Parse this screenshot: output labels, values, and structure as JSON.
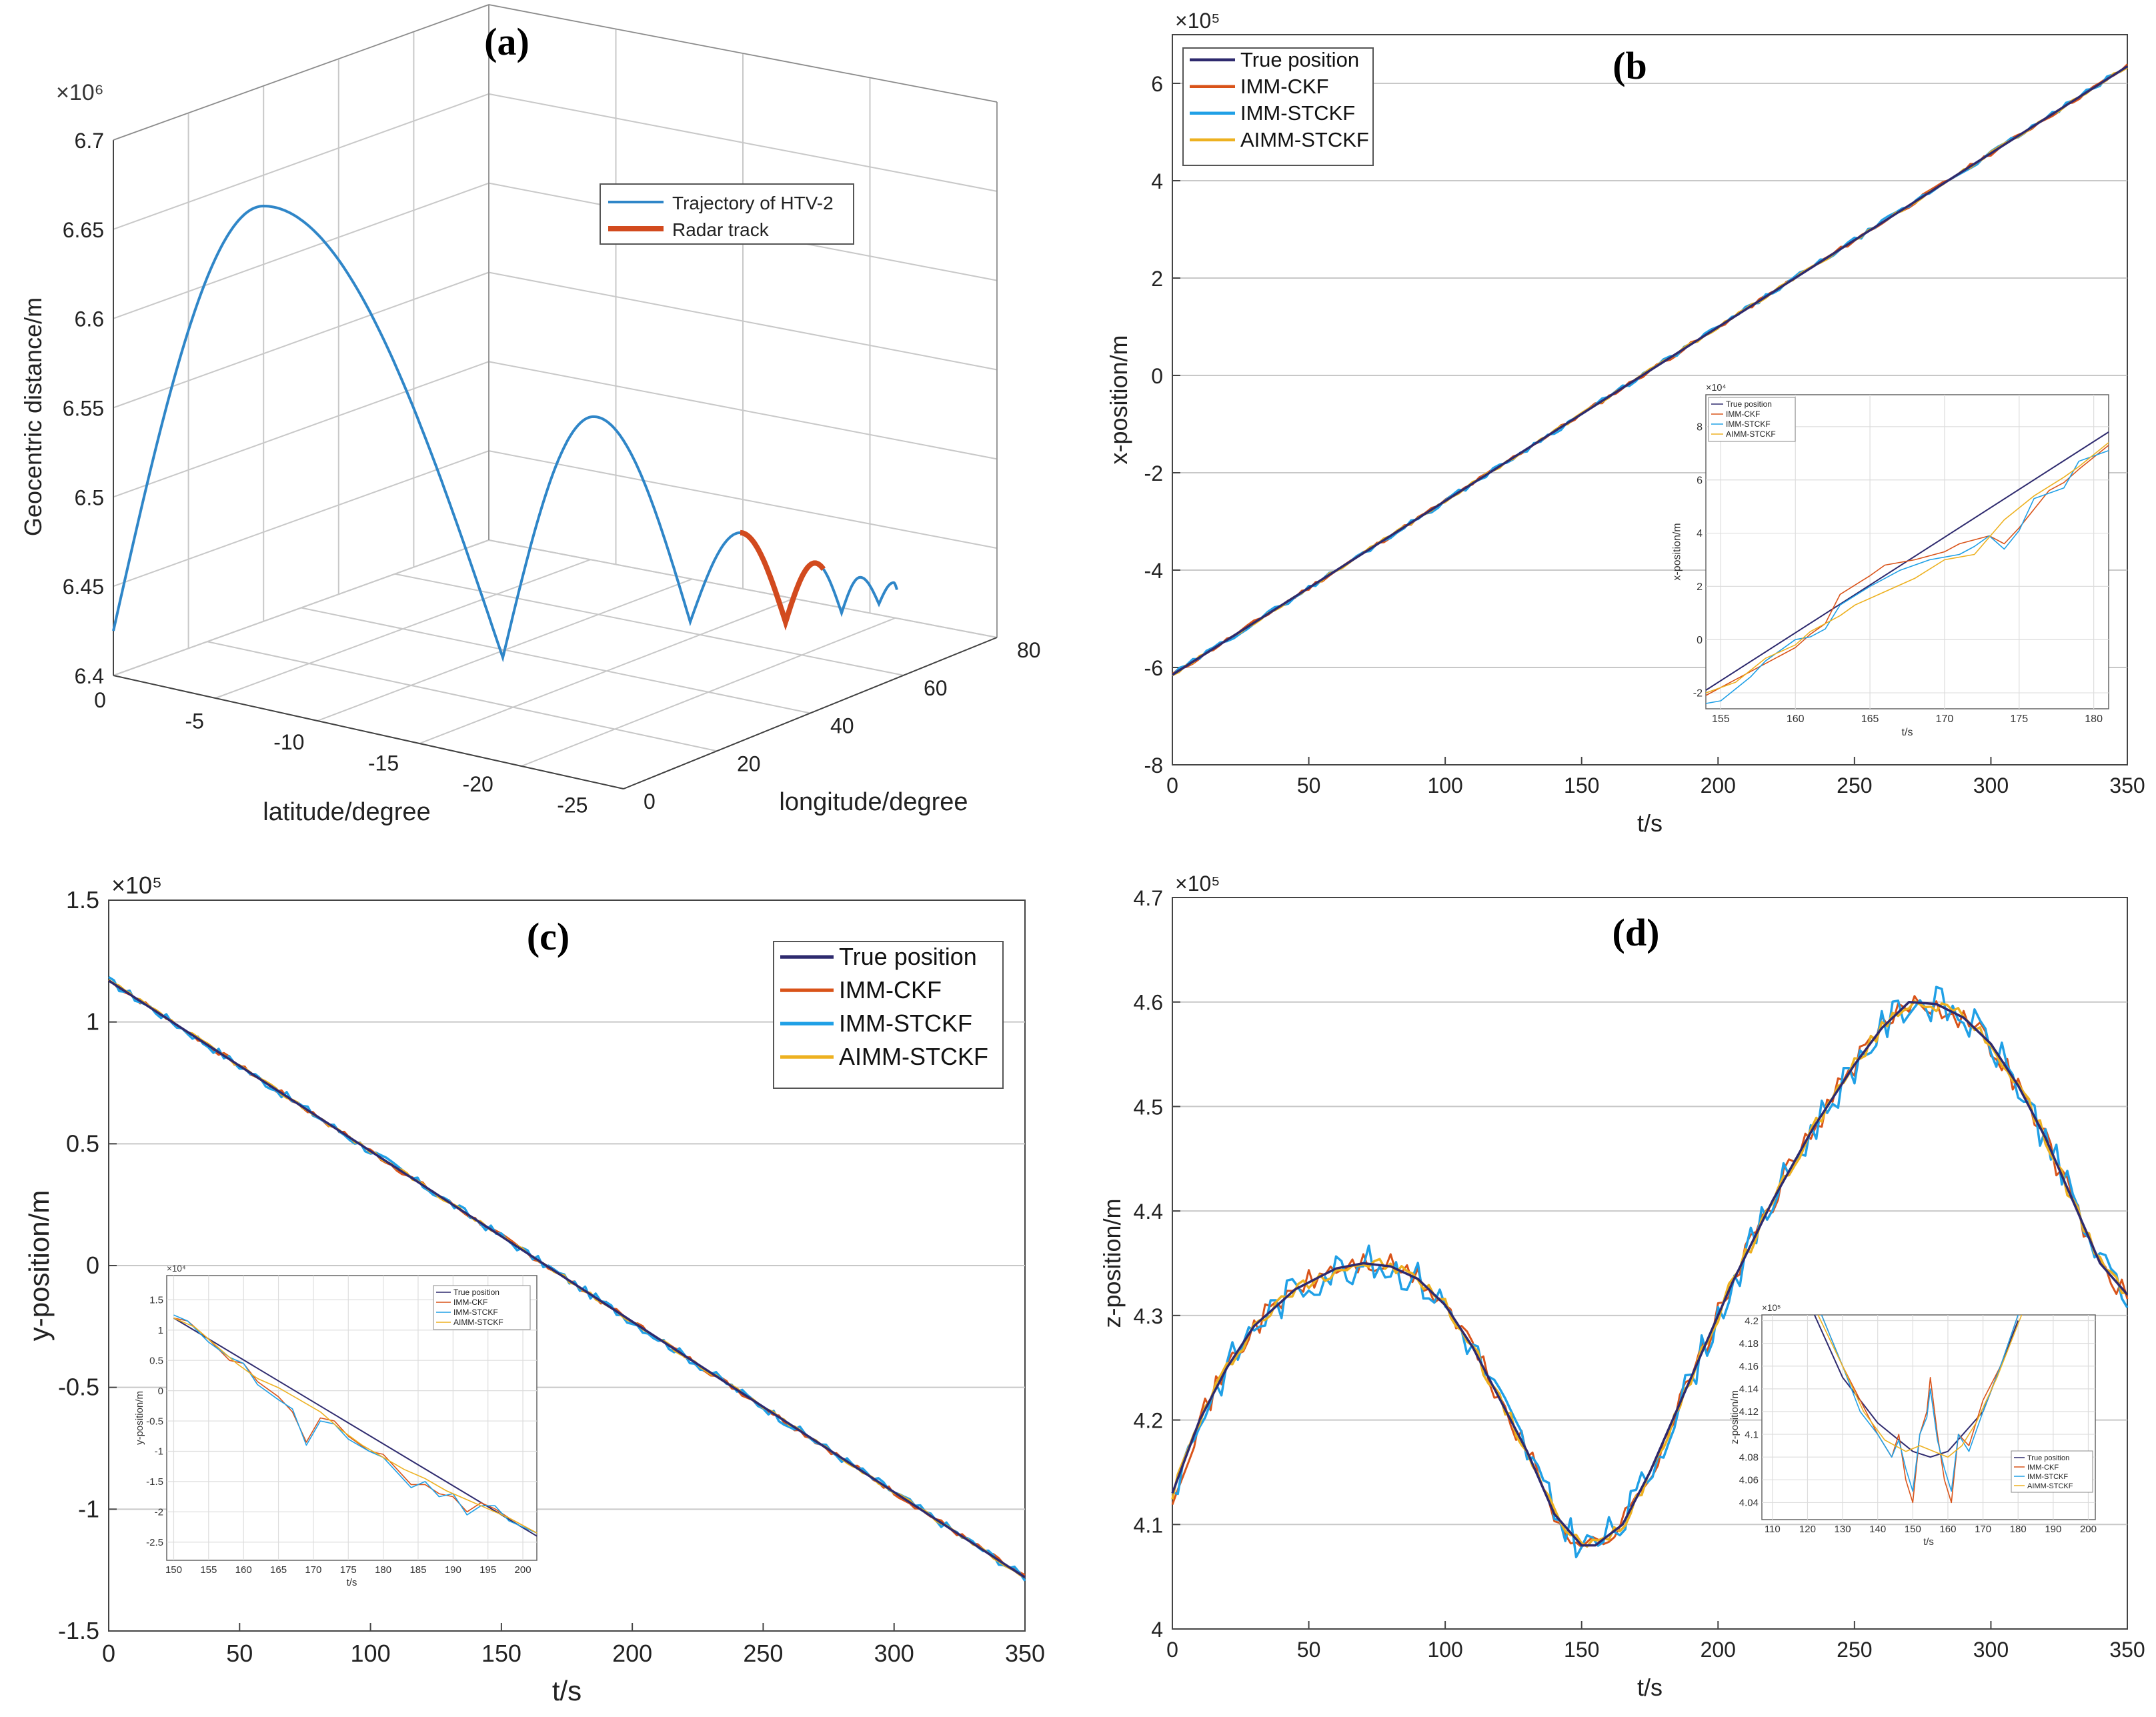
{
  "colors": {
    "true": "#2e2a6e",
    "ckf": "#d95319",
    "stckf": "#20a0e6",
    "aimm": "#edb120",
    "htv": "#2f86c8",
    "radar": "#d24a1e",
    "grid": "#c8c8c8",
    "axis": "#333333"
  },
  "chart_data": [
    {
      "id": "a",
      "type": "line3d",
      "panel_label": "(a)",
      "zlabel": "Geocentric distance/m",
      "xlabel": "latitude/degree",
      "ylabel": "longitude/degree",
      "zscale": "×10⁶",
      "zticks": [
        "6.4",
        "6.45",
        "6.5",
        "6.55",
        "6.6",
        "6.65",
        "6.7"
      ],
      "xticks": [
        "0",
        "-5",
        "-10",
        "-15",
        "-20",
        "-25"
      ],
      "yticks": [
        "0",
        "20",
        "40",
        "60",
        "80"
      ],
      "xlim": [
        0,
        -27
      ],
      "ylim": [
        0,
        80
      ],
      "zlim": [
        6.4,
        6.7
      ],
      "legend": [
        "Trajectory of HTV-2",
        "Radar track"
      ],
      "legend_position": "top-right"
    },
    {
      "id": "b",
      "type": "line",
      "panel_label": "(b",
      "xlabel": "t/s",
      "ylabel": "x-position/m",
      "yscale": "×10⁵",
      "xlim": [
        0,
        350
      ],
      "ylim": [
        -8,
        7
      ],
      "xticks": [
        "0",
        "50",
        "100",
        "150",
        "200",
        "250",
        "300",
        "350"
      ],
      "yticks": [
        "-8",
        "-6",
        "-4",
        "-2",
        "0",
        "2",
        "4",
        "6"
      ],
      "true_line": {
        "t": [
          0,
          350
        ],
        "values": [
          -6.15,
          6.35
        ]
      },
      "series": [
        "True position",
        "IMM-CKF",
        "IMM-STCKF",
        "AIMM-STCKF"
      ],
      "legend_position": "top-left",
      "inset": {
        "xlabel": "t/s",
        "ylabel": "x-position/m",
        "scale": "×10⁴",
        "xticks": [
          "155",
          "160",
          "165",
          "170",
          "175",
          "180"
        ],
        "yticks": [
          "-2",
          "0",
          "2",
          "4",
          "6",
          "8"
        ],
        "xlim": [
          154,
          181
        ],
        "ylim": [
          -2.6,
          9.2
        ],
        "legend": [
          "True position",
          "IMM-CKF",
          "IMM-STCKF",
          "AIMM-STCKF"
        ],
        "true_line": {
          "t": [
            154,
            181
          ],
          "values": [
            -1.9,
            7.8
          ]
        },
        "ckf": [
          [
            154,
            -2.1
          ],
          [
            156,
            -1.5
          ],
          [
            158,
            -0.9
          ],
          [
            160,
            -0.3
          ],
          [
            161,
            0.2
          ],
          [
            162,
            0.6
          ],
          [
            163,
            1.7
          ],
          [
            165,
            2.4
          ],
          [
            166,
            2.8
          ],
          [
            168,
            3.0
          ],
          [
            170,
            3.3
          ],
          [
            171,
            3.6
          ],
          [
            173,
            3.9
          ],
          [
            174,
            3.6
          ],
          [
            175,
            4.2
          ],
          [
            177,
            5.6
          ],
          [
            178,
            5.9
          ],
          [
            179,
            6.4
          ],
          [
            181,
            7.3
          ]
        ],
        "stckf": [
          [
            154,
            -2.4
          ],
          [
            155,
            -2.3
          ],
          [
            157,
            -1.4
          ],
          [
            158,
            -0.8
          ],
          [
            160,
            0.0
          ],
          [
            161,
            0.1
          ],
          [
            162,
            0.4
          ],
          [
            163,
            1.3
          ],
          [
            165,
            2.0
          ],
          [
            167,
            2.6
          ],
          [
            169,
            3.0
          ],
          [
            171,
            3.2
          ],
          [
            172,
            3.5
          ],
          [
            173,
            3.9
          ],
          [
            174,
            3.4
          ],
          [
            175,
            4.1
          ],
          [
            176,
            5.3
          ],
          [
            178,
            5.7
          ],
          [
            179,
            6.7
          ],
          [
            181,
            7.1
          ]
        ],
        "aimm": [
          [
            154,
            -2.0
          ],
          [
            156,
            -1.6
          ],
          [
            158,
            -0.7
          ],
          [
            160,
            -0.2
          ],
          [
            161,
            0.3
          ],
          [
            163,
            0.9
          ],
          [
            164,
            1.3
          ],
          [
            166,
            1.8
          ],
          [
            168,
            2.3
          ],
          [
            170,
            3.0
          ],
          [
            172,
            3.2
          ],
          [
            174,
            4.5
          ],
          [
            176,
            5.4
          ],
          [
            178,
            6.1
          ],
          [
            179,
            6.5
          ],
          [
            181,
            7.4
          ]
        ]
      }
    },
    {
      "id": "c",
      "type": "line",
      "panel_label": "(c)",
      "xlabel": "t/s",
      "ylabel": "y-position/m",
      "yscale": "×10⁵",
      "xlim": [
        0,
        350
      ],
      "ylim": [
        -1.5,
        1.5
      ],
      "xticks": [
        "0",
        "50",
        "100",
        "150",
        "200",
        "250",
        "300",
        "350"
      ],
      "yticks": [
        "-1.5",
        "-1",
        "-0.5",
        "0",
        "0.5",
        "1",
        "1.5"
      ],
      "true_line": {
        "t": [
          0,
          350
        ],
        "values": [
          1.17,
          -1.28
        ]
      },
      "series": [
        "True position",
        "IMM-CKF",
        "IMM-STCKF",
        "AIMM-STCKF"
      ],
      "legend_position": "top-right",
      "inset": {
        "xlabel": "t/s",
        "ylabel": "y-position/m",
        "scale": "×10⁴",
        "xticks": [
          "150",
          "155",
          "160",
          "165",
          "170",
          "175",
          "180",
          "185",
          "190",
          "195",
          "200"
        ],
        "yticks": [
          "-2.5",
          "-2",
          "-1.5",
          "-1",
          "-0.5",
          "0",
          "0.5",
          "1",
          "1.5"
        ],
        "xlim": [
          149,
          202
        ],
        "ylim": [
          -2.8,
          1.9
        ],
        "legend": [
          "True position",
          "IMM-CKF",
          "IMM-STCKF",
          "AIMM-STCKF"
        ],
        "true_line": {
          "t": [
            150,
            202
          ],
          "values": [
            1.2,
            -2.4
          ]
        },
        "ckf": [
          [
            150,
            1.2
          ],
          [
            152,
            1.15
          ],
          [
            155,
            0.85
          ],
          [
            158,
            0.5
          ],
          [
            160,
            0.45
          ],
          [
            162,
            0.15
          ],
          [
            165,
            -0.1
          ],
          [
            167,
            -0.35
          ],
          [
            169,
            -0.85
          ],
          [
            171,
            -0.45
          ],
          [
            173,
            -0.5
          ],
          [
            175,
            -0.75
          ],
          [
            178,
            -1.0
          ],
          [
            180,
            -1.05
          ],
          [
            182,
            -1.3
          ],
          [
            184,
            -1.55
          ],
          [
            186,
            -1.55
          ],
          [
            188,
            -1.7
          ],
          [
            190,
            -1.75
          ],
          [
            192,
            -2.0
          ],
          [
            194,
            -1.85
          ],
          [
            196,
            -1.95
          ],
          [
            198,
            -2.1
          ],
          [
            202,
            -2.35
          ]
        ],
        "stckf": [
          [
            150,
            1.25
          ],
          [
            152,
            1.15
          ],
          [
            155,
            0.8
          ],
          [
            158,
            0.55
          ],
          [
            160,
            0.45
          ],
          [
            162,
            0.1
          ],
          [
            165,
            -0.15
          ],
          [
            167,
            -0.3
          ],
          [
            169,
            -0.9
          ],
          [
            171,
            -0.5
          ],
          [
            173,
            -0.55
          ],
          [
            175,
            -0.8
          ],
          [
            178,
            -1.0
          ],
          [
            180,
            -1.1
          ],
          [
            182,
            -1.35
          ],
          [
            184,
            -1.6
          ],
          [
            186,
            -1.5
          ],
          [
            188,
            -1.75
          ],
          [
            190,
            -1.7
          ],
          [
            192,
            -2.05
          ],
          [
            194,
            -1.9
          ],
          [
            196,
            -1.9
          ],
          [
            198,
            -2.15
          ],
          [
            202,
            -2.35
          ]
        ],
        "aimm": [
          [
            150,
            1.2
          ],
          [
            153,
            1.05
          ],
          [
            156,
            0.75
          ],
          [
            159,
            0.45
          ],
          [
            162,
            0.2
          ],
          [
            165,
            0.05
          ],
          [
            168,
            -0.15
          ],
          [
            171,
            -0.35
          ],
          [
            174,
            -0.65
          ],
          [
            177,
            -0.9
          ],
          [
            180,
            -1.1
          ],
          [
            183,
            -1.3
          ],
          [
            186,
            -1.45
          ],
          [
            189,
            -1.65
          ],
          [
            192,
            -1.8
          ],
          [
            195,
            -1.95
          ],
          [
            198,
            -2.1
          ],
          [
            202,
            -2.35
          ]
        ]
      }
    },
    {
      "id": "d",
      "type": "line",
      "panel_label": "(d)",
      "xlabel": "t/s",
      "ylabel": "z-position/m",
      "yscale": "×10⁵",
      "xlim": [
        0,
        350
      ],
      "ylim": [
        4,
        4.7
      ],
      "xticks": [
        "0",
        "50",
        "100",
        "150",
        "200",
        "250",
        "300",
        "350"
      ],
      "yticks": [
        "4",
        "4.1",
        "4.2",
        "4.3",
        "4.4",
        "4.5",
        "4.6",
        "4.7"
      ],
      "true_curve": [
        [
          0,
          4.13
        ],
        [
          10,
          4.2
        ],
        [
          20,
          4.25
        ],
        [
          30,
          4.29
        ],
        [
          45,
          4.325
        ],
        [
          60,
          4.345
        ],
        [
          70,
          4.35
        ],
        [
          80,
          4.347
        ],
        [
          90,
          4.335
        ],
        [
          100,
          4.31
        ],
        [
          110,
          4.27
        ],
        [
          120,
          4.22
        ],
        [
          130,
          4.17
        ],
        [
          140,
          4.11
        ],
        [
          150,
          4.08
        ],
        [
          155,
          4.08
        ],
        [
          165,
          4.1
        ],
        [
          175,
          4.15
        ],
        [
          190,
          4.24
        ],
        [
          205,
          4.33
        ],
        [
          220,
          4.41
        ],
        [
          235,
          4.48
        ],
        [
          250,
          4.54
        ],
        [
          260,
          4.575
        ],
        [
          270,
          4.6
        ],
        [
          280,
          4.598
        ],
        [
          290,
          4.585
        ],
        [
          300,
          4.56
        ],
        [
          310,
          4.52
        ],
        [
          320,
          4.47
        ],
        [
          330,
          4.41
        ],
        [
          340,
          4.35
        ],
        [
          350,
          4.32
        ]
      ],
      "series": [
        "True position",
        "IMM-CKF",
        "IMM-STCKF",
        "AIMM-STCKF"
      ],
      "inset": {
        "xlabel": "t/s",
        "ylabel": "z-position/m",
        "scale": "×10⁵",
        "xticks": [
          "110",
          "120",
          "130",
          "140",
          "150",
          "160",
          "170",
          "180",
          "190",
          "200"
        ],
        "yticks": [
          "4.04",
          "4.06",
          "4.08",
          "4.1",
          "4.12",
          "4.14",
          "4.16",
          "4.18",
          "4.2"
        ],
        "xlim": [
          107,
          202
        ],
        "ylim": [
          4.025,
          4.205
        ],
        "legend": [
          "True position",
          "IMM-CKF",
          "IMM-STCKF",
          "AIMM-STCKF"
        ],
        "true_line": {
          "t": [
            122,
            130,
            140,
            150,
            155,
            160,
            170,
            180
          ],
          "values": [
            4.205,
            4.15,
            4.11,
            4.085,
            4.08,
            4.085,
            4.12,
            4.2
          ]
        },
        "ckf": [
          [
            124,
            4.205
          ],
          [
            130,
            4.16
          ],
          [
            135,
            4.13
          ],
          [
            140,
            4.1
          ],
          [
            144,
            4.08
          ],
          [
            146,
            4.1
          ],
          [
            148,
            4.06
          ],
          [
            150,
            4.04
          ],
          [
            152,
            4.1
          ],
          [
            154,
            4.12
          ],
          [
            155,
            4.15
          ],
          [
            157,
            4.1
          ],
          [
            159,
            4.06
          ],
          [
            161,
            4.04
          ],
          [
            163,
            4.1
          ],
          [
            166,
            4.09
          ],
          [
            170,
            4.13
          ],
          [
            175,
            4.16
          ],
          [
            180,
            4.205
          ]
        ],
        "stckf": [
          [
            124,
            4.205
          ],
          [
            130,
            4.16
          ],
          [
            135,
            4.12
          ],
          [
            140,
            4.1
          ],
          [
            144,
            4.08
          ],
          [
            146,
            4.095
          ],
          [
            148,
            4.07
          ],
          [
            150,
            4.05
          ],
          [
            152,
            4.1
          ],
          [
            154,
            4.115
          ],
          [
            155,
            4.14
          ],
          [
            157,
            4.095
          ],
          [
            159,
            4.07
          ],
          [
            161,
            4.05
          ],
          [
            163,
            4.1
          ],
          [
            166,
            4.085
          ],
          [
            170,
            4.12
          ],
          [
            175,
            4.16
          ],
          [
            180,
            4.205
          ]
        ],
        "aimm": [
          [
            123,
            4.205
          ],
          [
            130,
            4.16
          ],
          [
            136,
            4.12
          ],
          [
            142,
            4.095
          ],
          [
            148,
            4.085
          ],
          [
            152,
            4.09
          ],
          [
            156,
            4.085
          ],
          [
            160,
            4.08
          ],
          [
            164,
            4.09
          ],
          [
            168,
            4.11
          ],
          [
            174,
            4.15
          ],
          [
            181,
            4.205
          ]
        ]
      }
    }
  ]
}
